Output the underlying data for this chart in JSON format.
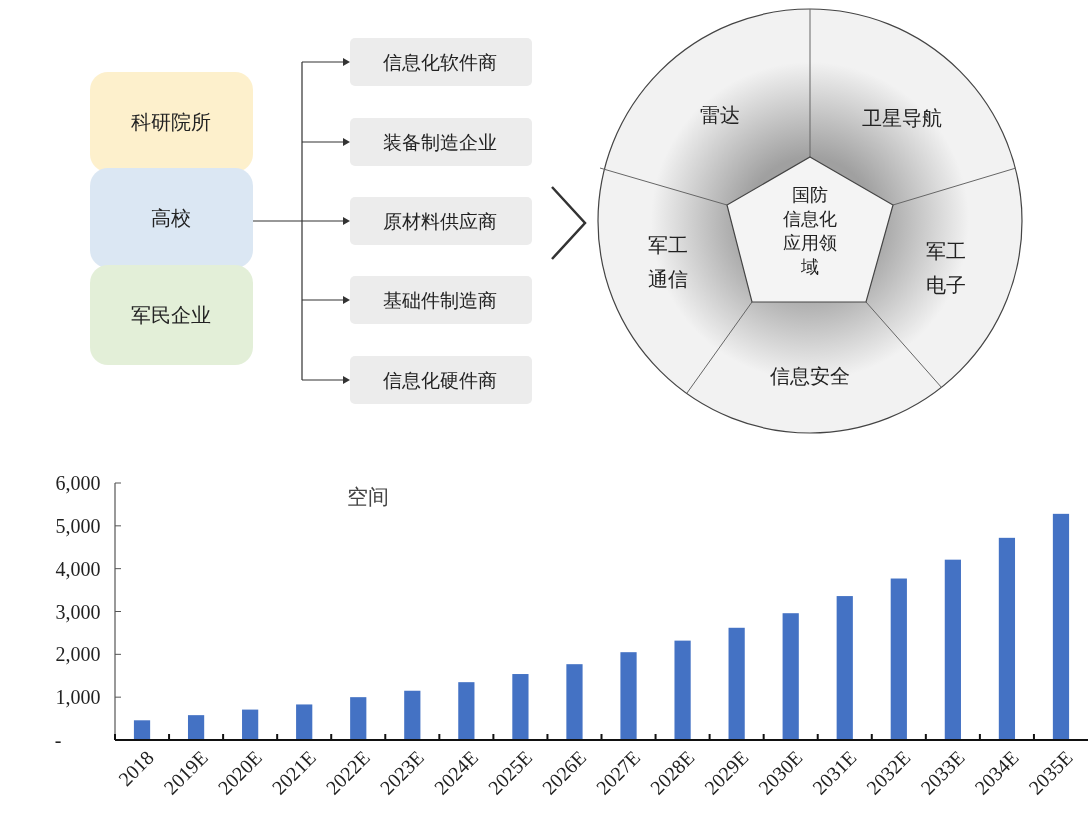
{
  "chart_data": [
    {
      "type": "other",
      "annotations": [
        "科研院所",
        "高校",
        "军民企业",
        "信息化软件商",
        "装备制造企业",
        "原材料供应商",
        "基础件制造商",
        "信息化硬件商",
        "雷达",
        "卫星导航",
        "军工电子",
        "信息安全",
        "军工通信",
        "国防信息化应用领域"
      ]
    },
    {
      "type": "bar",
      "title": "空间",
      "categories": [
        "2018",
        "2019E",
        "2020E",
        "2021E",
        "2022E",
        "2023E",
        "2024E",
        "2025E",
        "2026E",
        "2027E",
        "2028E",
        "2029E",
        "2030E",
        "2031E",
        "2032E",
        "2033E",
        "2034E",
        "2035E"
      ],
      "values": [
        460,
        580,
        710,
        830,
        1000,
        1150,
        1350,
        1540,
        1770,
        2050,
        2320,
        2620,
        2960,
        3360,
        3770,
        4210,
        4720,
        5280
      ],
      "color": "#4472c4",
      "ylim": [
        0,
        6000
      ],
      "yticks": [
        {
          "value": 0,
          "label": "-"
        },
        {
          "value": 1000,
          "label": "1,000"
        },
        {
          "value": 2000,
          "label": "2,000"
        },
        {
          "value": 3000,
          "label": "3,000"
        },
        {
          "value": 4000,
          "label": "4,000"
        },
        {
          "value": 5000,
          "label": "5,000"
        },
        {
          "value": 6000,
          "label": "6,000"
        }
      ]
    }
  ]
}
